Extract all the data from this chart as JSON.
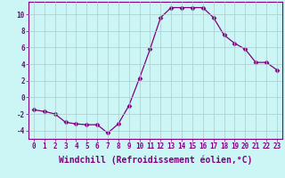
{
  "hours": [
    0,
    1,
    2,
    3,
    4,
    5,
    6,
    7,
    8,
    9,
    10,
    11,
    12,
    13,
    14,
    15,
    16,
    17,
    18,
    19,
    20,
    21,
    22,
    23
  ],
  "values": [
    -1.5,
    -1.7,
    -2.0,
    -3.0,
    -3.2,
    -3.3,
    -3.3,
    -4.3,
    -3.2,
    -1.0,
    2.3,
    5.8,
    9.6,
    10.8,
    10.8,
    10.8,
    10.8,
    9.6,
    7.5,
    6.5,
    5.8,
    4.2,
    4.2,
    3.3
  ],
  "line_color": "#800080",
  "marker": "D",
  "marker_size": 2.5,
  "bg_color": "#ccf5f5",
  "grid_color": "#aacccc",
  "xlabel": "Windchill (Refroidissement éolien,°C)",
  "xlabel_fontsize": 7,
  "ylim": [
    -5.0,
    11.5
  ],
  "xlim": [
    -0.5,
    23.5
  ],
  "yticks": [
    -4,
    -2,
    0,
    2,
    4,
    6,
    8,
    10
  ],
  "xtick_labels": [
    "0",
    "1",
    "2",
    "3",
    "4",
    "5",
    "6",
    "7",
    "8",
    "9",
    "10",
    "11",
    "12",
    "13",
    "14",
    "15",
    "16",
    "17",
    "18",
    "19",
    "20",
    "21",
    "22",
    "23"
  ]
}
